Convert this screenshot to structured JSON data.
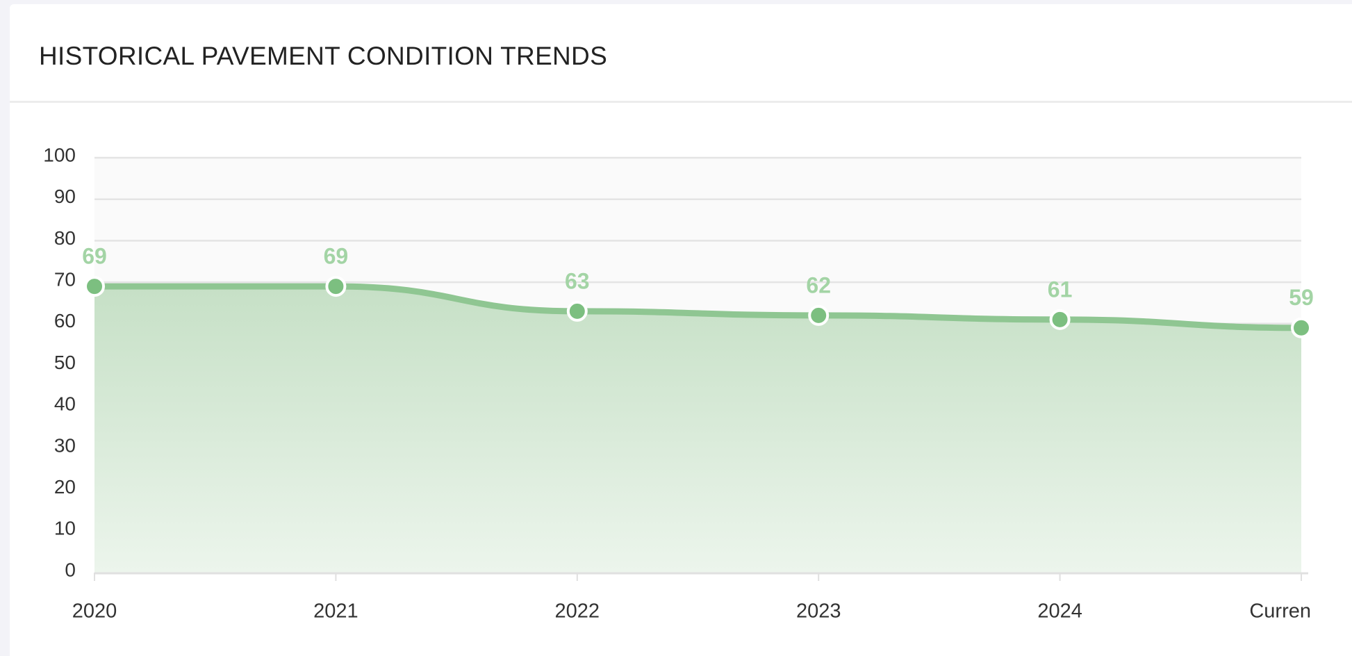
{
  "chart_data": {
    "type": "area",
    "title": "HISTORICAL PAVEMENT CONDITION TRENDS",
    "categories": [
      "2020",
      "2021",
      "2022",
      "2023",
      "2024",
      "Curren"
    ],
    "values": [
      69,
      69,
      63,
      62,
      61,
      59
    ],
    "color": "#8fc692",
    "ylim": [
      0,
      100
    ],
    "yticks": [
      0,
      10,
      20,
      30,
      40,
      50,
      60,
      70,
      80,
      90,
      100
    ],
    "grid": true
  }
}
